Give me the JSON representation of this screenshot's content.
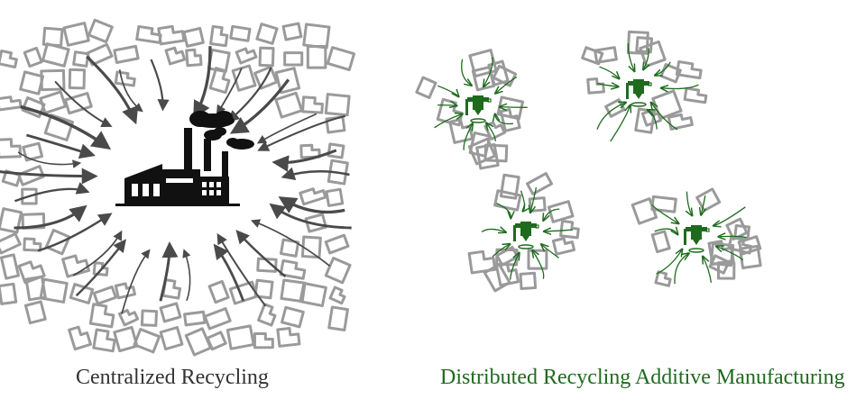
{
  "captions": {
    "centralized": "Centralized Recycling",
    "distributed": "Distributed Recycling Additive Manufacturing"
  },
  "colors": {
    "building_outline": "#9a9a9a",
    "centralized_arrow": "#4a4a4a",
    "factory": "#111111",
    "distributed_green": "#1e6b1e",
    "centralized_caption": "#333333",
    "distributed_caption": "#1e6b1e"
  },
  "icons": {
    "central": "factory-icon",
    "distributed": "3d-printer-icon"
  }
}
